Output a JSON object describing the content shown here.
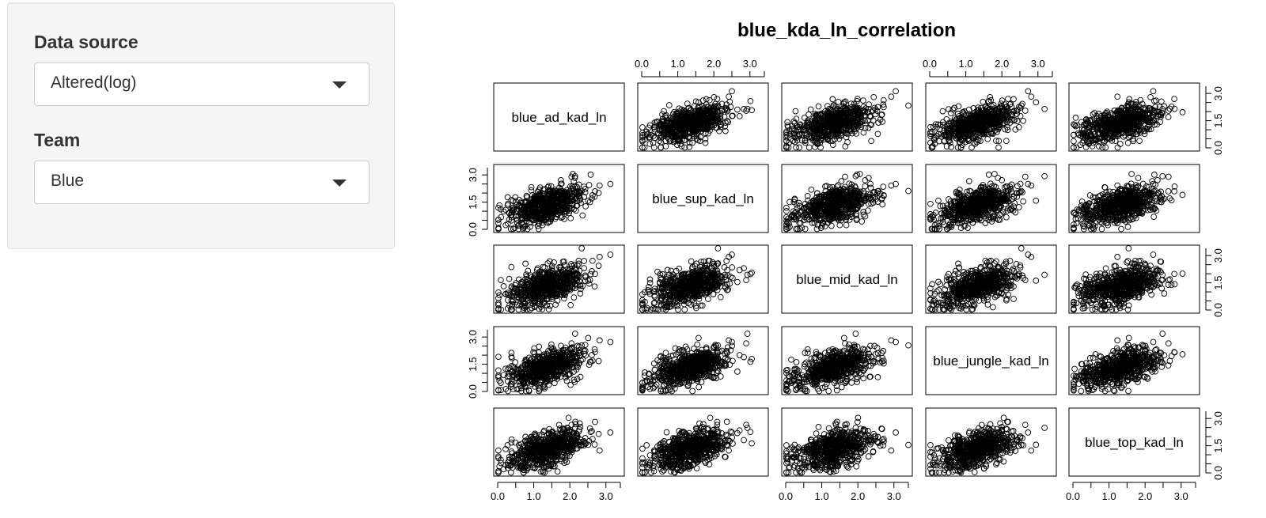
{
  "sidebar": {
    "data_source": {
      "label": "Data source",
      "value": "Altered(log)"
    },
    "team": {
      "label": "Team",
      "value": "Blue"
    }
  },
  "chart_data": {
    "type": "scatter",
    "subtype": "scatterplot-matrix",
    "title": "blue_kda_ln_correlation",
    "variables": [
      "blue_ad_kad_ln",
      "blue_sup_kad_ln",
      "blue_mid_kad_ln",
      "blue_jungle_kad_ln",
      "blue_top_kad_ln"
    ],
    "axis_range": [
      0,
      3.4
    ],
    "tick_labels": [
      "0.0",
      "1.0",
      "2.0",
      "3.0"
    ],
    "minor_tick_labels_hidden": [
      "0.5",
      "1.5",
      "2.5"
    ],
    "left_axis_tick_labels": [
      "0.0",
      "1.5",
      "3.0"
    ],
    "grid": false,
    "marker": "open-circle",
    "marker_color": "#000000",
    "approx_points_per_panel": 650,
    "approx_variable_stats": {
      "mean": 1.35,
      "sd": 0.55,
      "min": 0.0,
      "max": 3.4,
      "pairwise_correlation": 0.5
    }
  }
}
